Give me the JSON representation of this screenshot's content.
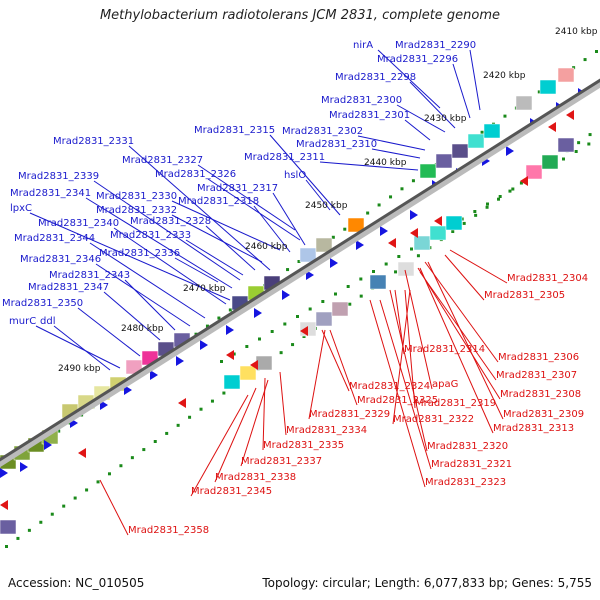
{
  "title": "Methylobacterium radiotolerans JCM 2831, complete genome",
  "footer": {
    "accession": "Accession: NC_010505",
    "summary": "Topology: circular; Length: 6,077,833 bp; Genes: 5,755"
  },
  "colors": {
    "plus_label": "#1a1acc",
    "minus_label": "#dd1111",
    "backbone": "#555555",
    "tick_dot": "#1a8a1a",
    "arrow_plus": "#1515e0",
    "arrow_minus": "#e01515"
  },
  "ticks": [
    "2410 kbp",
    "2420 kbp",
    "2430 kbp",
    "2440 kbp",
    "2450 kbp",
    "2460 kbp",
    "2470 kbp",
    "2480 kbp",
    "2490 kbp"
  ],
  "plus_genes": [
    "nirA",
    "Mrad2831_2290",
    "Mrad2831_2296",
    "Mrad2831_2298",
    "Mrad2831_2300",
    "Mrad2831_2301",
    "Mrad2831_2302",
    "Mrad2831_2310",
    "Mrad2831_2311",
    "hslO",
    "Mrad2831_2315",
    "Mrad2831_2331",
    "Mrad2831_2327",
    "Mrad2831_2326",
    "Mrad2831_2317",
    "Mrad2831_2339",
    "Mrad2831_2341",
    "Mrad2831_2330",
    "Mrad2831_2318",
    "lpxC",
    "Mrad2831_2332",
    "Mrad2831_2340",
    "Mrad2831_2328",
    "Mrad2831_2344",
    "Mrad2831_2333",
    "Mrad2831_2346",
    "Mrad2831_2336",
    "Mrad2831_2343",
    "Mrad2831_2347",
    "Mrad2831_2350",
    "murC",
    "ddl"
  ],
  "minus_genes": [
    "Mrad2831_2304",
    "Mrad2831_2305",
    "Mrad2831_2314",
    "Mrad2831_2306",
    "Mrad2831_2307",
    "apaG",
    "Mrad2831_2308",
    "Mrad2831_2324",
    "Mrad2831_2319",
    "Mrad2831_2309",
    "Mrad2831_2325",
    "Mrad2831_2313",
    "Mrad2831_2329",
    "Mrad2831_2322",
    "Mrad2831_2334",
    "Mrad2831_2320",
    "Mrad2831_2335",
    "Mrad2831_2321",
    "Mrad2831_2337",
    "Mrad2831_2338",
    "Mrad2831_2323",
    "Mrad2831_2345",
    "Mrad2831_2358"
  ]
}
